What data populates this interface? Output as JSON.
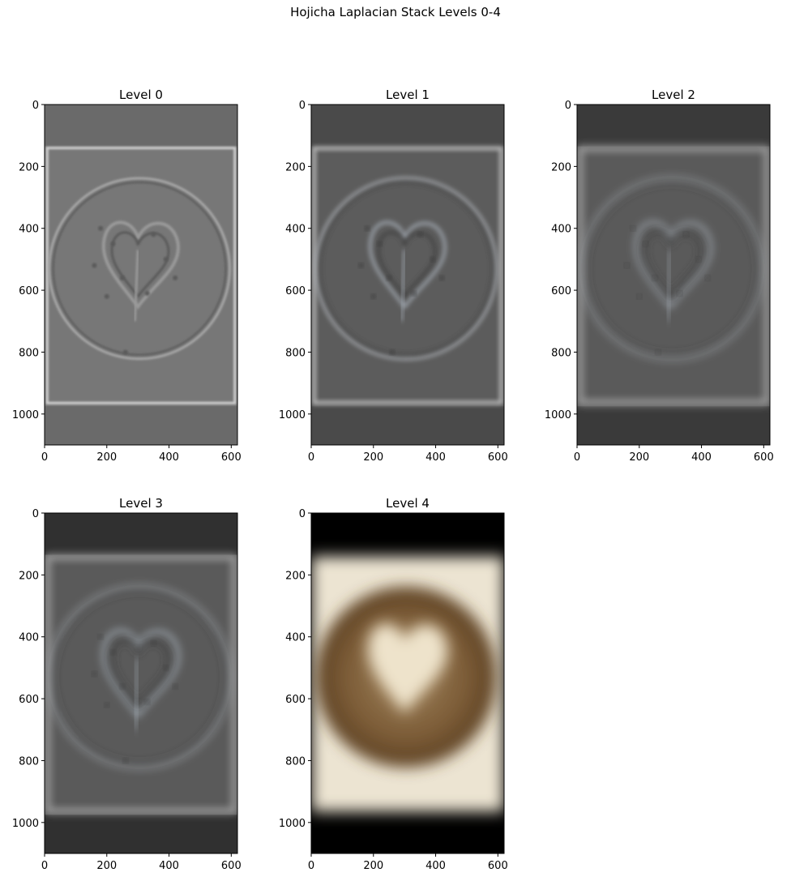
{
  "figure_title": "Hojicha Laplacian Stack Levels 0-4",
  "chart_data": [
    {
      "type": "image",
      "title": "Level 0",
      "xticks": [
        0,
        200,
        400,
        600
      ],
      "yticks": [
        0,
        200,
        400,
        600,
        800,
        1000
      ],
      "xlim": [
        0,
        620
      ],
      "ylim": [
        1100,
        0
      ]
    },
    {
      "type": "image",
      "title": "Level 1",
      "xticks": [
        0,
        200,
        400,
        600
      ],
      "yticks": [
        0,
        200,
        400,
        600,
        800,
        1000
      ],
      "xlim": [
        0,
        620
      ],
      "ylim": [
        1100,
        0
      ]
    },
    {
      "type": "image",
      "title": "Level 2",
      "xticks": [
        0,
        200,
        400,
        600
      ],
      "yticks": [
        0,
        200,
        400,
        600,
        800,
        1000
      ],
      "xlim": [
        0,
        620
      ],
      "ylim": [
        1100,
        0
      ]
    },
    {
      "type": "image",
      "title": "Level 3",
      "xticks": [
        0,
        200,
        400,
        600
      ],
      "yticks": [
        0,
        200,
        400,
        600,
        800,
        1000
      ],
      "xlim": [
        0,
        620
      ],
      "ylim": [
        1100,
        0
      ]
    },
    {
      "type": "image",
      "title": "Level 4",
      "xticks": [
        0,
        200,
        400,
        600
      ],
      "yticks": [
        0,
        200,
        400,
        600,
        800,
        1000
      ],
      "xlim": [
        0,
        620
      ],
      "ylim": [
        1100,
        0
      ]
    }
  ]
}
